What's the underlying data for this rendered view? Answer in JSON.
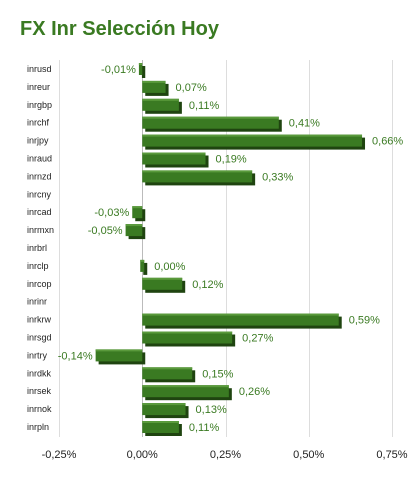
{
  "chart_data": {
    "type": "bar",
    "orientation": "horizontal",
    "title": "FX Inr Selección Hoy",
    "categories": [
      "inrusd",
      "inreur",
      "inrgbp",
      "inrchf",
      "inrjpy",
      "inraud",
      "inrnzd",
      "inrcny",
      "inrcad",
      "inrmxn",
      "inrbrl",
      "inrclp",
      "inrcop",
      "inrinr",
      "inrkrw",
      "inrsgd",
      "inrtry",
      "inrdkk",
      "inrsek",
      "inrnok",
      "inrpln"
    ],
    "values": [
      -0.01,
      0.07,
      0.11,
      0.41,
      0.66,
      0.19,
      0.33,
      null,
      -0.03,
      -0.05,
      null,
      0.0,
      0.12,
      null,
      0.59,
      0.27,
      -0.14,
      0.15,
      0.26,
      0.13,
      0.11
    ],
    "value_labels": [
      "-0,01%",
      "0,07%",
      "0,11%",
      "0,41%",
      "0,66%",
      "0,19%",
      "0,33%",
      "",
      "-0,03%",
      "-0,05%",
      "",
      "0,00%",
      "0,12%",
      "",
      "0,59%",
      "0,27%",
      "-0,14%",
      "0,15%",
      "0,26%",
      "0,13%",
      "0,11%"
    ],
    "x_ticks": [
      -0.25,
      0,
      0.25,
      0.5,
      0.75
    ],
    "x_tick_labels": [
      "-0,25%",
      "0,00%",
      "0,25%",
      "0,50%",
      "0,75%"
    ],
    "xlim": [
      -0.25,
      0.75
    ],
    "xlabel": "",
    "ylabel": "",
    "grid": true,
    "legend": "none",
    "bar_color": "#3a7a22",
    "label_color": "#3a7a22",
    "title_color": "#3a7a22"
  }
}
